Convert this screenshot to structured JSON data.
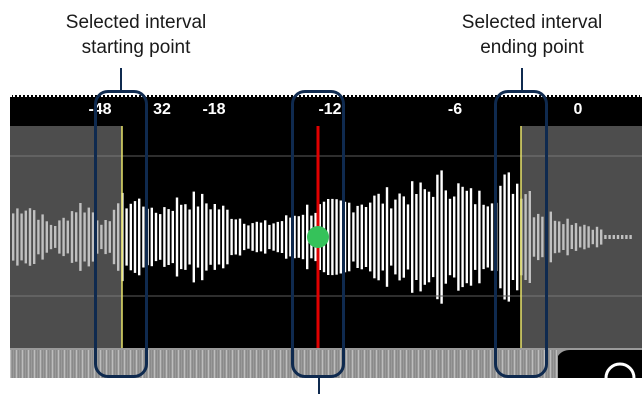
{
  "callouts": {
    "start": [
      "Selected interval",
      "starting point"
    ],
    "end": [
      "Selected interval",
      "ending point"
    ]
  },
  "ruler": {
    "ticks": [
      "-48",
      "32",
      "-18",
      "-12",
      "-6",
      "0"
    ]
  },
  "colors": {
    "background": "#000000",
    "unselected_overlay": "#8c8c8c",
    "waveform": "#ffffff",
    "interval_marker": "#e8e36a",
    "playhead": "#e00000",
    "playhead_knob": "#35c25a",
    "callout_frame": "#0f2a4f"
  }
}
